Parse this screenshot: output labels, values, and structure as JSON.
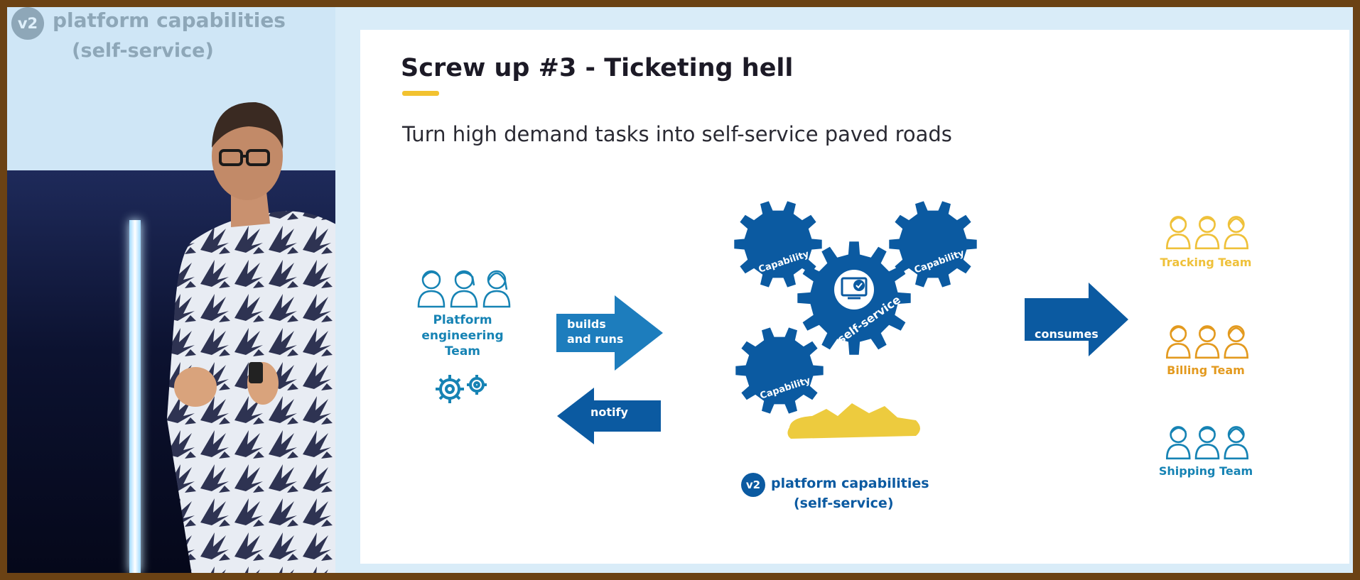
{
  "slide": {
    "title": "Screw up #3 - Ticketing hell",
    "subtitle": "Turn high demand tasks into self-service paved roads"
  },
  "platform_team": {
    "label": [
      "Platform",
      "engineering",
      "Team"
    ]
  },
  "arrows": {
    "builds": [
      "builds",
      "and runs"
    ],
    "notify": "notify",
    "consumes": "consumes"
  },
  "gears": {
    "capability": "Capability",
    "center": "self-service"
  },
  "caption": {
    "badge": "v2",
    "title": "platform capabilities",
    "subtitle": "(self-service)"
  },
  "teams": {
    "tracking": "Tracking Team",
    "billing": "Billing Team",
    "shipping": "Shipping Team"
  },
  "camera_echo": {
    "badge": "v2",
    "title": "platform capabilities",
    "subtitle": "(self-service)"
  },
  "colors": {
    "navy": "#0b5aa1",
    "teal": "#1683b4",
    "yellow": "#efc13a",
    "orange": "#e39a1f",
    "frame": "#6b4214"
  }
}
